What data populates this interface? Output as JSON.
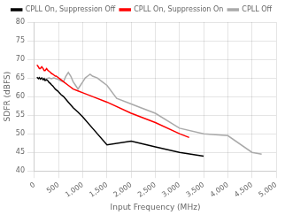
{
  "chart_data": {
    "type": "line",
    "xlabel": "Input Frequency (MHz)",
    "ylabel": "SDFR (dBFS)",
    "xlim": [
      0,
      5000
    ],
    "ylim": [
      40,
      80
    ],
    "xticks": [
      0,
      500,
      1000,
      1500,
      2000,
      2500,
      3000,
      3500,
      4000,
      4500,
      5000
    ],
    "yticks": [
      40,
      45,
      50,
      55,
      60,
      65,
      70,
      75,
      80
    ],
    "grid": true,
    "legend": "upper right",
    "series": [
      {
        "name": "CPLL On, Suppression Off",
        "color": "#000000",
        "x": [
          50,
          80,
          100,
          120,
          150,
          180,
          200,
          220,
          250,
          280,
          300,
          330,
          350,
          380,
          400,
          430,
          450,
          480,
          500,
          550,
          600,
          700,
          800,
          900,
          1000,
          1200,
          1500,
          2000,
          2500,
          3000,
          3500
        ],
        "values": [
          65.2,
          64.8,
          65.1,
          64.7,
          65.0,
          64.5,
          64.8,
          64.3,
          64.5,
          64.2,
          63.8,
          63.5,
          63.2,
          62.8,
          62.5,
          62.0,
          61.8,
          61.5,
          61.2,
          60.5,
          60.0,
          58.5,
          57.0,
          55.8,
          54.5,
          51.5,
          47.0,
          48.0,
          46.5,
          45.0,
          44.0
        ]
      },
      {
        "name": "CPLL On, Suppression On",
        "color": "#ff0000",
        "x": [
          50,
          80,
          100,
          120,
          150,
          180,
          200,
          220,
          250,
          280,
          300,
          330,
          350,
          380,
          400,
          430,
          450,
          480,
          500,
          550,
          600,
          700,
          800,
          900,
          1000,
          1200,
          1500,
          2000,
          2500,
          3000,
          3200
        ],
        "values": [
          68.5,
          68.0,
          67.5,
          67.5,
          68.0,
          67.5,
          67.0,
          67.0,
          67.5,
          67.0,
          66.8,
          66.5,
          66.2,
          66.0,
          65.8,
          65.5,
          65.5,
          65.2,
          65.0,
          64.5,
          64.0,
          63.0,
          62.0,
          61.5,
          61.0,
          60.0,
          58.5,
          55.5,
          53.0,
          50.0,
          49.0
        ]
      },
      {
        "name": "CPLL Off",
        "color": "#aaaaaa",
        "x": [
          200,
          250,
          300,
          350,
          400,
          450,
          500,
          550,
          600,
          650,
          700,
          750,
          800,
          850,
          900,
          950,
          1000,
          1050,
          1100,
          1150,
          1200,
          1300,
          1400,
          1500,
          1700,
          2000,
          2200,
          2500,
          3000,
          3500,
          4000,
          4500,
          4700
        ],
        "values": [
          64.5,
          64.8,
          65.0,
          64.8,
          65.0,
          64.8,
          64.5,
          64.2,
          64.0,
          65.5,
          66.5,
          65.5,
          64.0,
          63.0,
          62.0,
          63.0,
          64.0,
          65.0,
          65.5,
          66.0,
          65.5,
          65.0,
          64.0,
          63.0,
          59.5,
          58.0,
          57.0,
          55.5,
          51.5,
          50.0,
          49.5,
          45.0,
          44.5
        ]
      }
    ]
  }
}
